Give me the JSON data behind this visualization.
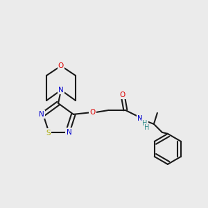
{
  "bg": "#ebebeb",
  "bond_color": "#1a1a1a",
  "colors": {
    "O": "#dd0000",
    "N": "#0000cc",
    "S": "#aaaa00",
    "H": "#2e8b8b",
    "C": "#1a1a1a"
  },
  "figsize": [
    3.0,
    3.0
  ],
  "dpi": 100,
  "lw": 1.5,
  "fs": 7.5
}
